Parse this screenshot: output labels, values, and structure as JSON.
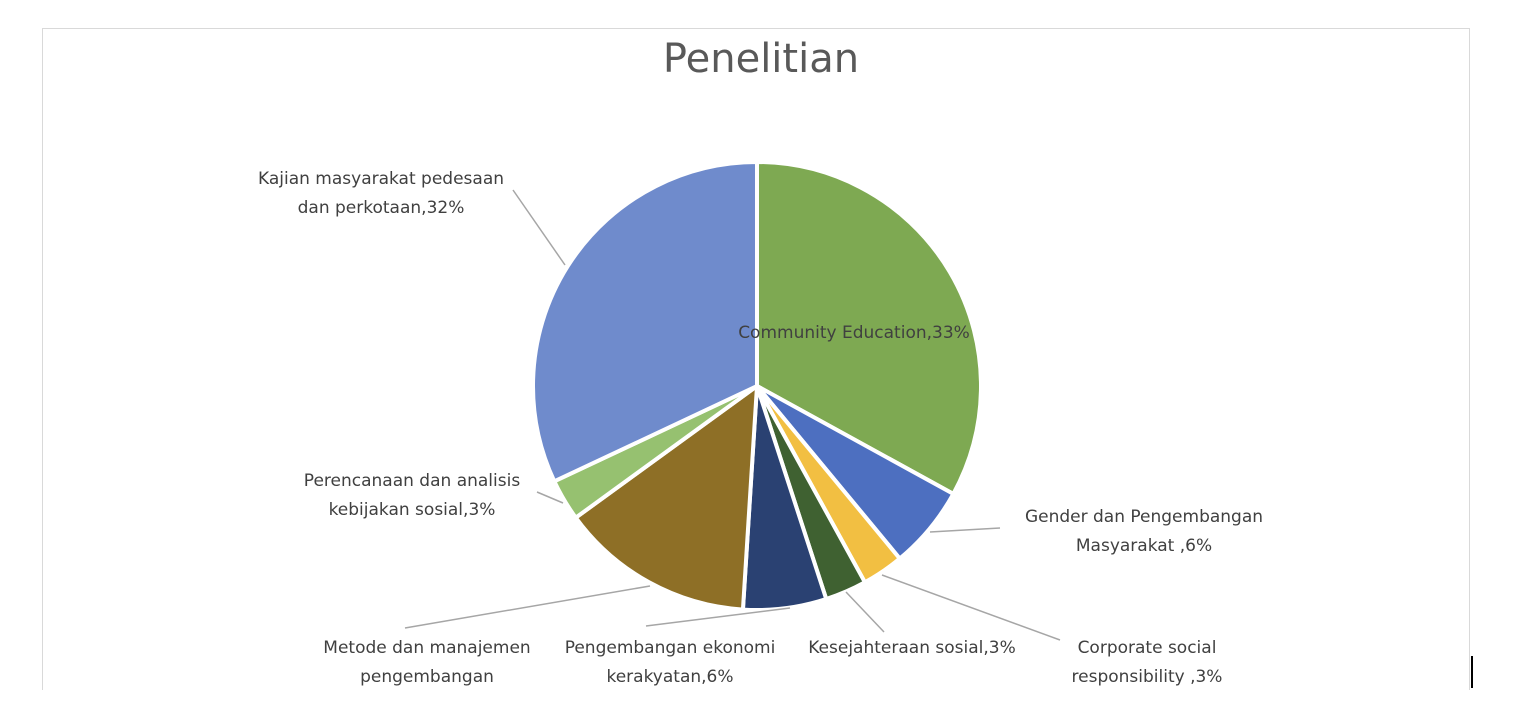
{
  "chart_data": {
    "type": "pie",
    "title": "Penelitian",
    "slices": [
      {
        "label": "Community Education",
        "value": 33,
        "color": "#7ea952",
        "text_lines": [
          "Community Education,33%"
        ]
      },
      {
        "label": "Gender dan Pengembangan Masyarakat",
        "value": 6,
        "color": "#4d6fc0",
        "text_lines": [
          "Gender dan Pengembangan",
          "Masyarakat ,6%"
        ]
      },
      {
        "label": "Corporate social responsibility",
        "value": 3,
        "color": "#f2bf42",
        "text_lines": [
          "Corporate social",
          "responsibility ,3%"
        ]
      },
      {
        "label": "Kesejahteraan sosial",
        "value": 3,
        "color": "#3f6131",
        "text_lines": [
          "Kesejahteraan sosial,3%"
        ]
      },
      {
        "label": "Pengembangan ekonomi kerakyatan",
        "value": 6,
        "color": "#2a4172",
        "text_lines": [
          "Pengembangan ekonomi",
          "kerakyatan,6%"
        ]
      },
      {
        "label": "Metode dan manajemen pengembangan",
        "value": 14,
        "color": "#8e6f26",
        "text_lines": [
          "Metode dan manajemen",
          "pengembangan"
        ]
      },
      {
        "label": "Perencanaan dan analisis kebijakan sosial",
        "value": 3,
        "color": "#96c170",
        "text_lines": [
          "Perencanaan dan analisis",
          "kebijakan sosial,3%"
        ]
      },
      {
        "label": "Kajian masyarakat pedesaan dan perkotaan",
        "value": 32,
        "color": "#6f8bcc",
        "text_lines": [
          "Kajian masyarakat pedesaan",
          "dan perkotaan,32%"
        ]
      }
    ],
    "legend": "none"
  }
}
